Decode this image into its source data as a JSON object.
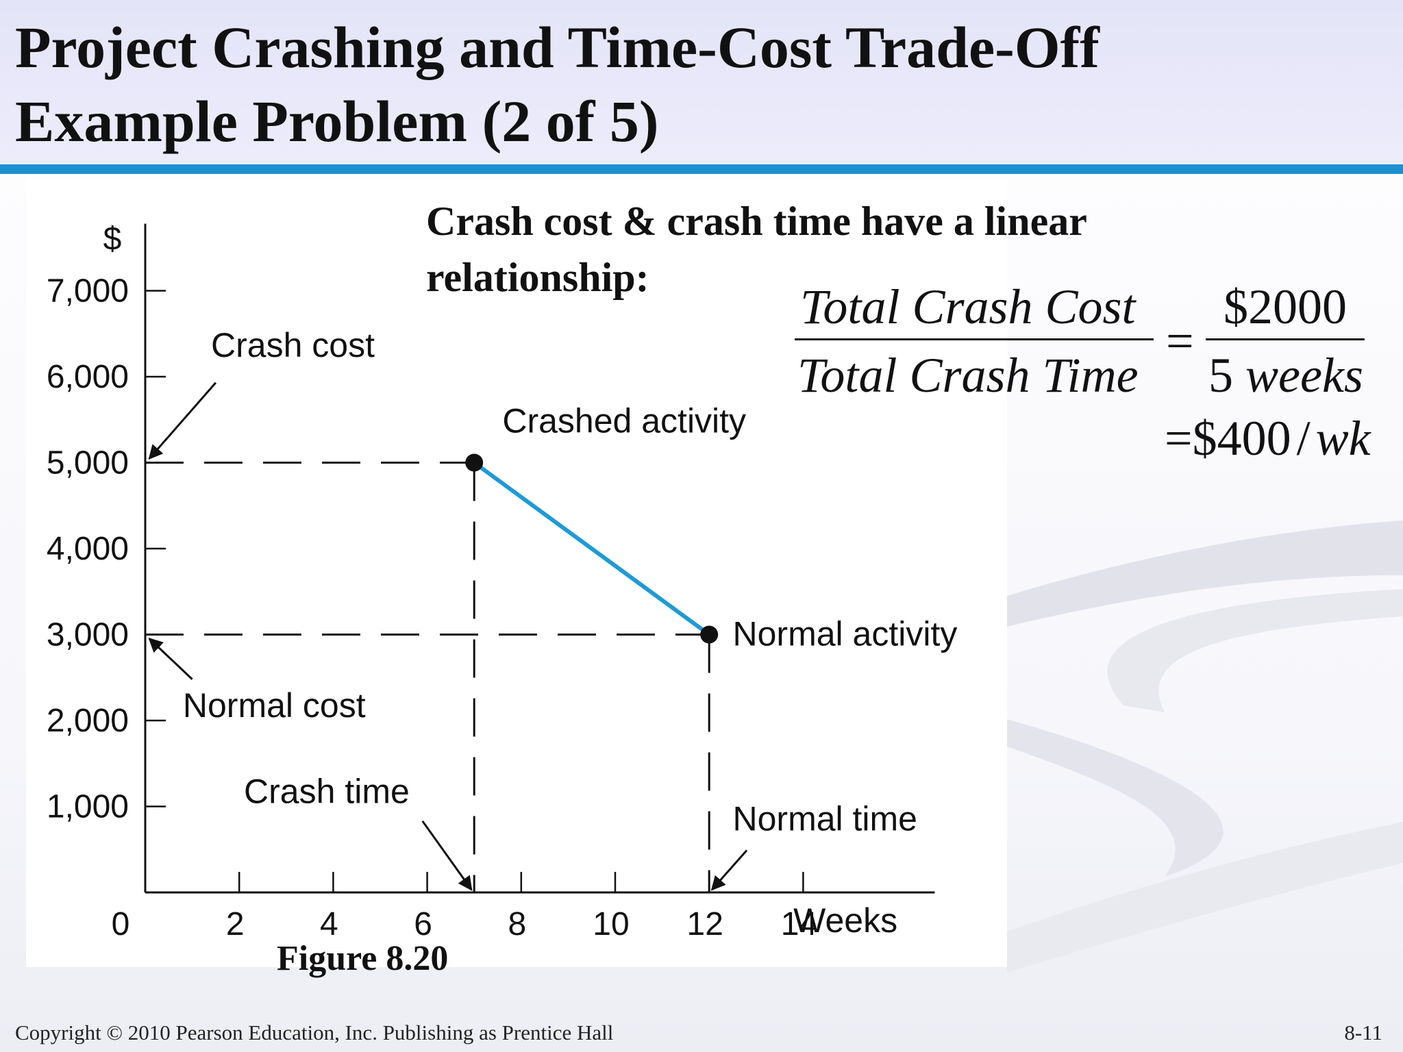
{
  "slide": {
    "title_line1": "Project Crashing and Time-Cost Trade-Off",
    "title_line2": "Example Problem (2 of 5)",
    "heading": "Crash cost & crash time have a linear relationship:",
    "formula": {
      "numerator_left": "Total Crash Cost",
      "denominator_left": "Total Crash Time",
      "equals": "=",
      "numerator_right": "$2000",
      "denominator_right_value": "5",
      "denominator_right_unit": "weeks",
      "result_value": "$400",
      "result_slash": "/",
      "result_unit": "wk"
    },
    "figure_caption": "Figure 8.20",
    "copyright": "Copyright © 2010 Pearson Education, Inc. Publishing as Prentice Hall",
    "page_number": "8-11",
    "accent_color": "#1e8fd0"
  },
  "chart_data": {
    "type": "line",
    "ylabel": "$",
    "xlabel": "Weeks",
    "xlim": [
      0,
      17
    ],
    "ylim": [
      0,
      7700
    ],
    "x_ticks": [
      0,
      2,
      4,
      6,
      8,
      10,
      12,
      14
    ],
    "x_tick_labels": [
      "0",
      "2",
      "4",
      "6",
      "8",
      "10",
      "12",
      "14"
    ],
    "y_ticks": [
      1000,
      2000,
      3000,
      4000,
      5000,
      6000,
      7000
    ],
    "y_tick_labels": [
      "1,000",
      "2,000",
      "3,000",
      "4,000",
      "5,000",
      "6,000",
      "7,000"
    ],
    "series": [
      {
        "x": [
          7,
          12
        ],
        "y": [
          5000,
          3000
        ],
        "color": "#1e9ad8"
      }
    ],
    "points": [
      {
        "label": "Crashed activity",
        "x": 7,
        "y": 5000
      },
      {
        "label": "Normal activity",
        "x": 12,
        "y": 3000
      }
    ],
    "annotations": {
      "crash_cost": "Crash cost",
      "normal_cost": "Normal cost",
      "crash_time": "Crash time",
      "normal_time": "Normal time"
    },
    "grid": false
  }
}
